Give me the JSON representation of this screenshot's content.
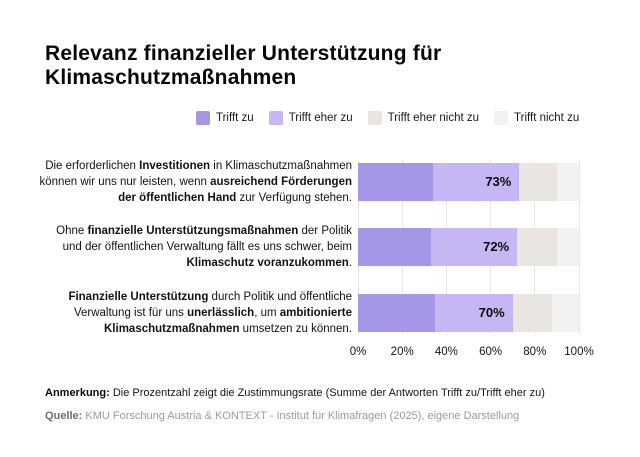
{
  "title": "Relevanz finanzieller Unterstützung für Klimaschutzmaßnahmen",
  "legend": [
    {
      "name": "trifft-zu",
      "label": "Trifft zu",
      "color": "#a596e8"
    },
    {
      "name": "trifft-eher-zu",
      "label": "Trifft eher zu",
      "color": "#c6b6f3"
    },
    {
      "name": "trifft-eher-nicht-zu",
      "label": "Trifft eher nicht zu",
      "color": "#e9e5e0"
    },
    {
      "name": "trifft-nicht-zu",
      "label": "Trifft nicht zu",
      "color": "#f4f2f0"
    }
  ],
  "chart_data": {
    "type": "bar",
    "orientation": "horizontal",
    "stacked": true,
    "title": "Relevanz finanzieller Unterstützung für Klimaschutzmaßnahmen",
    "xlabel": "",
    "ylabel": "",
    "xlim": [
      0,
      100
    ],
    "x_ticks": [
      "0%",
      "20%",
      "40%",
      "60%",
      "80%",
      "100%"
    ],
    "grid": true,
    "legend_position": "top",
    "series_names": [
      "Trifft zu",
      "Trifft eher zu",
      "Trifft eher nicht zu",
      "Trifft nicht zu"
    ],
    "annotation_rule": "Prozentzahl = Summe Trifft zu + Trifft eher zu",
    "rows": [
      {
        "label_lines": [
          [
            {
              "t": "Die erforderlichen ",
              "b": false
            },
            {
              "t": "Investitionen",
              "b": true
            },
            {
              "t": " in Klimaschutzmaßnahmen",
              "b": false
            }
          ],
          [
            {
              "t": "können wir uns nur leisten, wenn ",
              "b": false
            },
            {
              "t": "ausreichend Förderungen",
              "b": true
            }
          ],
          [
            {
              "t": "der öffentlichen Hand",
              "b": true
            },
            {
              "t": " zur Verfügung stehen.",
              "b": false
            }
          ]
        ],
        "values": [
          34,
          39,
          17,
          10
        ],
        "agreement": 73,
        "agreement_label": "73%"
      },
      {
        "label_lines": [
          [
            {
              "t": "Ohne ",
              "b": false
            },
            {
              "t": "finanzielle Unterstützungsmaßnahmen",
              "b": true
            },
            {
              "t": " der Politik",
              "b": false
            }
          ],
          [
            {
              "t": "und der öffentlichen Verwaltung fällt es uns schwer, beim",
              "b": false
            }
          ],
          [
            {
              "t": "Klimaschutz voranzukommen",
              "b": true
            },
            {
              "t": ".",
              "b": false
            }
          ]
        ],
        "values": [
          33,
          39,
          18,
          10
        ],
        "agreement": 72,
        "agreement_label": "72%"
      },
      {
        "label_lines": [
          [
            {
              "t": "Finanzielle Unterstützung",
              "b": true
            },
            {
              "t": " durch Politik und öffentliche",
              "b": false
            }
          ],
          [
            {
              "t": "Verwaltung ist für uns ",
              "b": false
            },
            {
              "t": "unerlässlich",
              "b": true
            },
            {
              "t": ", um ",
              "b": false
            },
            {
              "t": "ambitionierte",
              "b": true
            }
          ],
          [
            {
              "t": "Klimaschutzmaßnahmen",
              "b": true
            },
            {
              "t": " umsetzen zu können.",
              "b": false
            }
          ]
        ],
        "values": [
          35,
          35,
          18,
          12
        ],
        "agreement": 70,
        "agreement_label": "70%"
      }
    ]
  },
  "note": {
    "label": "Anmerkung:",
    "text": " Die Prozentzahl zeigt die Zustimmungsrate (Summe der Antworten Trifft zu/Trifft eher zu)"
  },
  "source": {
    "label": "Quelle:",
    "text": " KMU Forschung Austria & KONTEXT - Institut für Klimafragen (2025), eigene Darstellung"
  }
}
